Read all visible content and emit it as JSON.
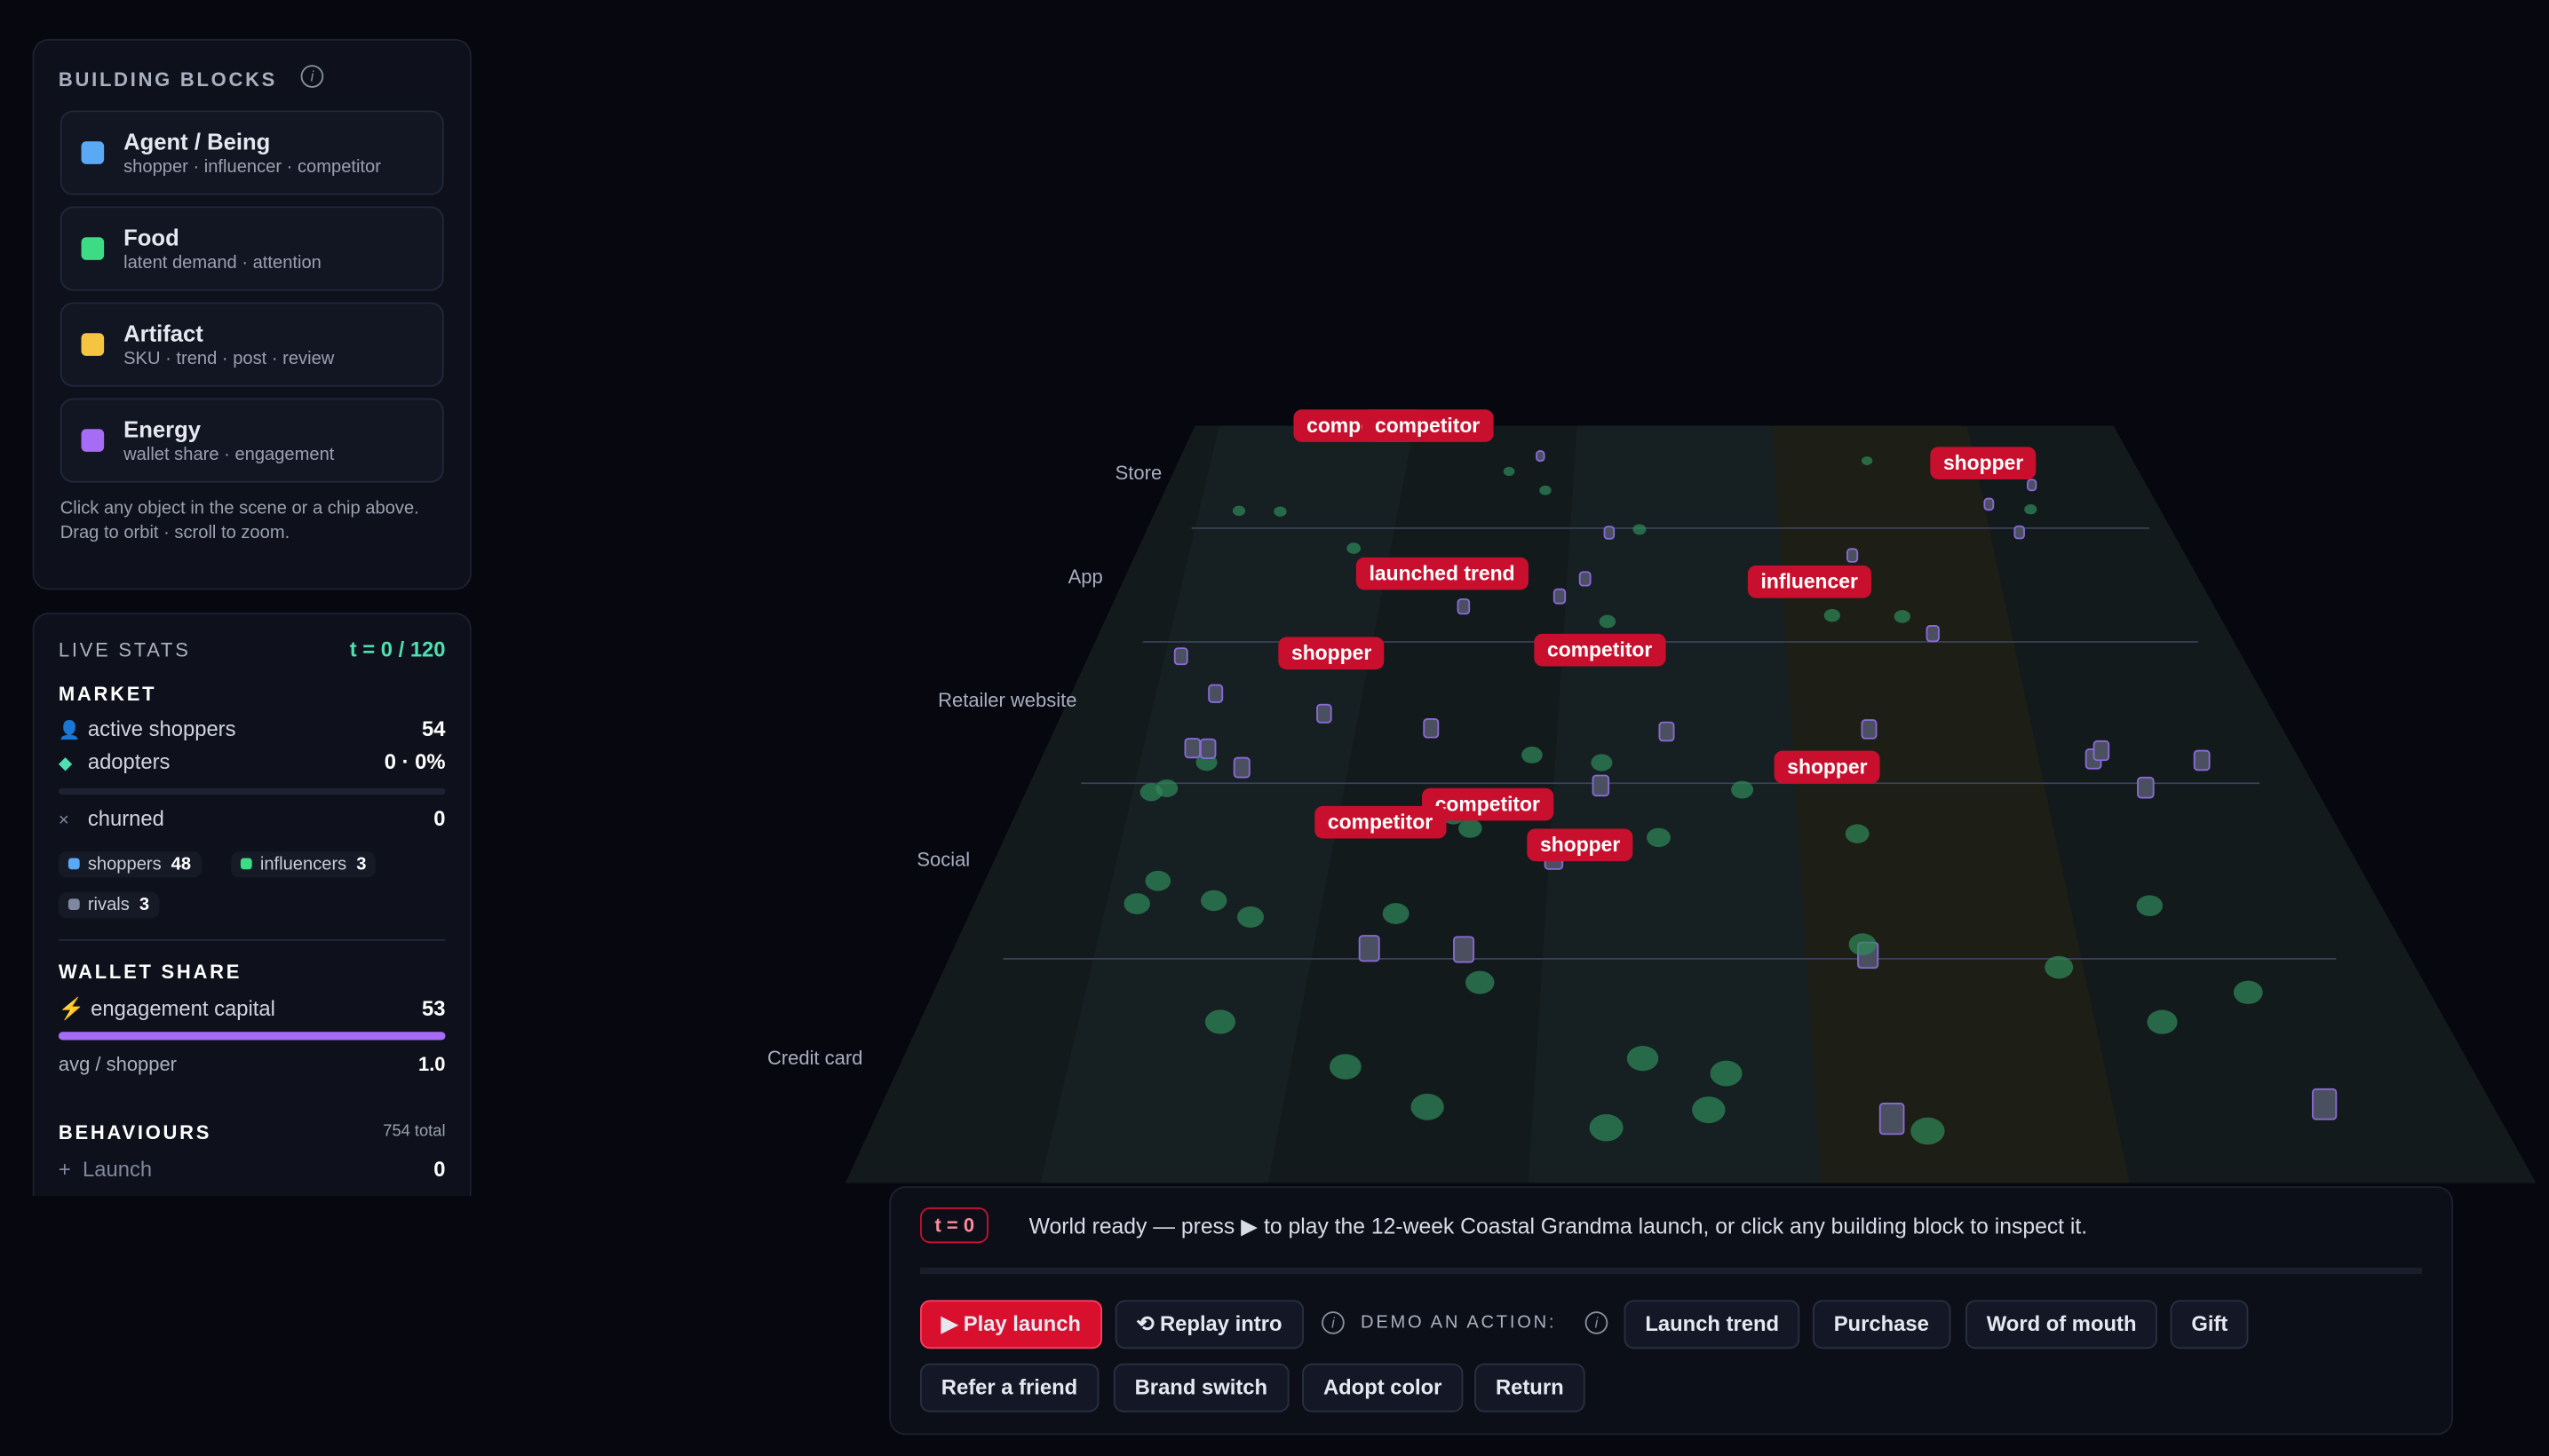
{
  "building_blocks": {
    "title": "BUILDING BLOCKS",
    "items": [
      {
        "name": "Agent / Being",
        "desc": "shopper · influencer · competitor",
        "color": "#5aa9f5"
      },
      {
        "name": "Food",
        "desc": "latent demand · attention",
        "color": "#3ddc84"
      },
      {
        "name": "Artifact",
        "desc": "SKU · trend · post · review",
        "color": "#f5c542"
      },
      {
        "name": "Energy",
        "desc": "wallet share · engagement",
        "color": "#a66cf5"
      }
    ],
    "hint": "Click any object in the scene or a chip above. Drag to orbit · scroll to zoom."
  },
  "live_stats": {
    "title": "LIVE STATS",
    "time": "t = 0 / 120",
    "market": {
      "title": "MARKET",
      "rows": [
        {
          "label": "active shoppers",
          "value": 54
        },
        {
          "label": "adopters",
          "value": "0 · 0%"
        },
        {
          "label": "churned",
          "value": 0
        }
      ],
      "chips": [
        {
          "label": "shoppers",
          "value": 48
        },
        {
          "label": "influencers",
          "value": 3
        },
        {
          "label": "rivals",
          "value": 3
        }
      ]
    },
    "wallet_share": {
      "title": "WALLET SHARE",
      "rows": [
        {
          "label": "engagement capital",
          "value": 53
        },
        {
          "label": "avg / shopper",
          "value": "1.0"
        }
      ]
    },
    "behaviours": {
      "title": "BEHAVIOURS",
      "total": "754 total",
      "rows": [
        {
          "label": "Launch",
          "value": 0
        }
      ]
    }
  },
  "scene": {
    "lanes": [
      "Store",
      "App",
      "Retailer website",
      "Social",
      "Credit card"
    ],
    "labels": [
      "competitor",
      "competitor",
      "shopper",
      "launched trend",
      "influencer",
      "shopper",
      "competitor",
      "shopper",
      "competitor",
      "competitor",
      "shopper"
    ]
  },
  "control": {
    "time": "t = 0",
    "message": "World ready — press ▶ to play the 12-week Coastal Grandma launch, or click any building block to inspect it.",
    "play": "▶ Play launch",
    "replay": "⟲ Replay intro",
    "demo_label": "DEMO AN ACTION:",
    "actions": [
      "Launch trend",
      "Purchase",
      "Word of mouth",
      "Gift",
      "Refer a friend",
      "Brand switch",
      "Adopt color",
      "Return"
    ]
  }
}
